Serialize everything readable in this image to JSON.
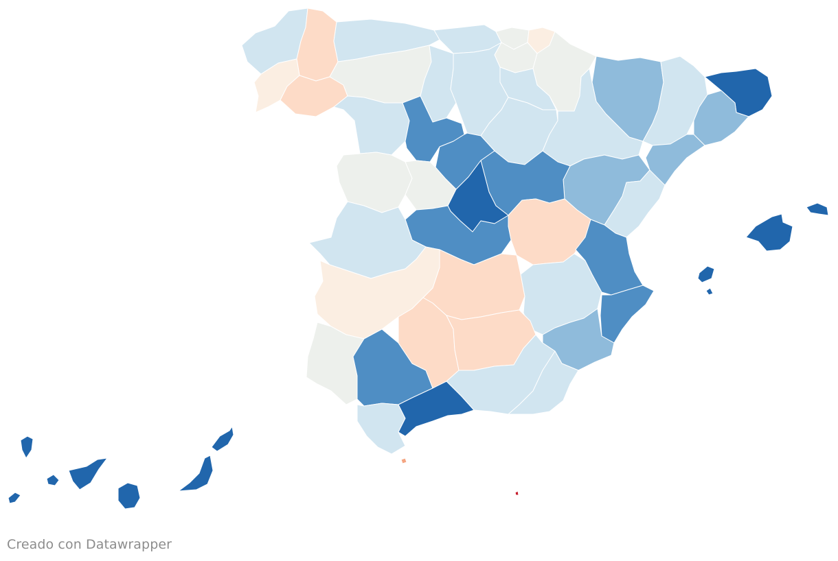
{
  "credit": "Creado con Datawrapper",
  "colors": {
    "dark_blue": "#2166ac",
    "mid_blue": "#4f8ec4",
    "light_mid_blue": "#8fbbdb",
    "light_blue": "#d1e5f0",
    "neutral": "#edf0ec",
    "light_peach": "#fbeee2",
    "peach": "#fddbc7",
    "red": "#c51b2a"
  },
  "regions": [
    {
      "name": "A Coruña",
      "color": "#d1e5f0"
    },
    {
      "name": "Lugo",
      "color": "#fddbc7"
    },
    {
      "name": "Pontevedra",
      "color": "#fbeee2"
    },
    {
      "name": "Ourense",
      "color": "#fddbc7"
    },
    {
      "name": "Asturias",
      "color": "#d1e5f0"
    },
    {
      "name": "Cantabria",
      "color": "#d1e5f0"
    },
    {
      "name": "Bizkaia",
      "color": "#edf0ec"
    },
    {
      "name": "Gipuzkoa",
      "color": "#fbeee2"
    },
    {
      "name": "Araba/Álava",
      "color": "#edf0ec"
    },
    {
      "name": "Navarra",
      "color": "#edf0ec"
    },
    {
      "name": "La Rioja",
      "color": "#d1e5f0"
    },
    {
      "name": "León",
      "color": "#edf0ec"
    },
    {
      "name": "Palencia",
      "color": "#d1e5f0"
    },
    {
      "name": "Burgos",
      "color": "#d1e5f0"
    },
    {
      "name": "Zamora",
      "color": "#d1e5f0"
    },
    {
      "name": "Valladolid",
      "color": "#4f8ec4"
    },
    {
      "name": "Soria",
      "color": "#d1e5f0"
    },
    {
      "name": "Segovia",
      "color": "#4f8ec4"
    },
    {
      "name": "Salamanca",
      "color": "#edf0ec"
    },
    {
      "name": "Ávila",
      "color": "#edf0ec"
    },
    {
      "name": "Huesca",
      "color": "#8fbbdb"
    },
    {
      "name": "Zaragoza",
      "color": "#d1e5f0"
    },
    {
      "name": "Teruel",
      "color": "#8fbbdb"
    },
    {
      "name": "Lleida",
      "color": "#d1e5f0"
    },
    {
      "name": "Girona",
      "color": "#2166ac"
    },
    {
      "name": "Barcelona",
      "color": "#8fbbdb"
    },
    {
      "name": "Tarragona",
      "color": "#8fbbdb"
    },
    {
      "name": "Guadalajara",
      "color": "#4f8ec4"
    },
    {
      "name": "Madrid",
      "color": "#2166ac"
    },
    {
      "name": "Cuenca",
      "color": "#fddbc7"
    },
    {
      "name": "Toledo",
      "color": "#4f8ec4"
    },
    {
      "name": "Cáceres",
      "color": "#d1e5f0"
    },
    {
      "name": "Badajoz",
      "color": "#fbeee2"
    },
    {
      "name": "Ciudad Real",
      "color": "#fddbc7"
    },
    {
      "name": "Albacete",
      "color": "#d1e5f0"
    },
    {
      "name": "Castellón",
      "color": "#d1e5f0"
    },
    {
      "name": "Valencia",
      "color": "#4f8ec4"
    },
    {
      "name": "Alicante",
      "color": "#4f8ec4"
    },
    {
      "name": "Murcia",
      "color": "#8fbbdb"
    },
    {
      "name": "Huelva",
      "color": "#edf0ec"
    },
    {
      "name": "Sevilla",
      "color": "#4f8ec4"
    },
    {
      "name": "Córdoba",
      "color": "#fddbc7"
    },
    {
      "name": "Jaén",
      "color": "#fddbc7"
    },
    {
      "name": "Granada",
      "color": "#d1e5f0"
    },
    {
      "name": "Almería",
      "color": "#d1e5f0"
    },
    {
      "name": "Cádiz",
      "color": "#d1e5f0"
    },
    {
      "name": "Málaga",
      "color": "#2166ac"
    },
    {
      "name": "Illes Balears",
      "color": "#2166ac"
    },
    {
      "name": "Las Palmas",
      "color": "#2166ac"
    },
    {
      "name": "Santa Cruz de Tenerife",
      "color": "#2166ac"
    },
    {
      "name": "Ceuta",
      "color": "#f4a582"
    },
    {
      "name": "Melilla",
      "color": "#c51b2a"
    }
  ]
}
